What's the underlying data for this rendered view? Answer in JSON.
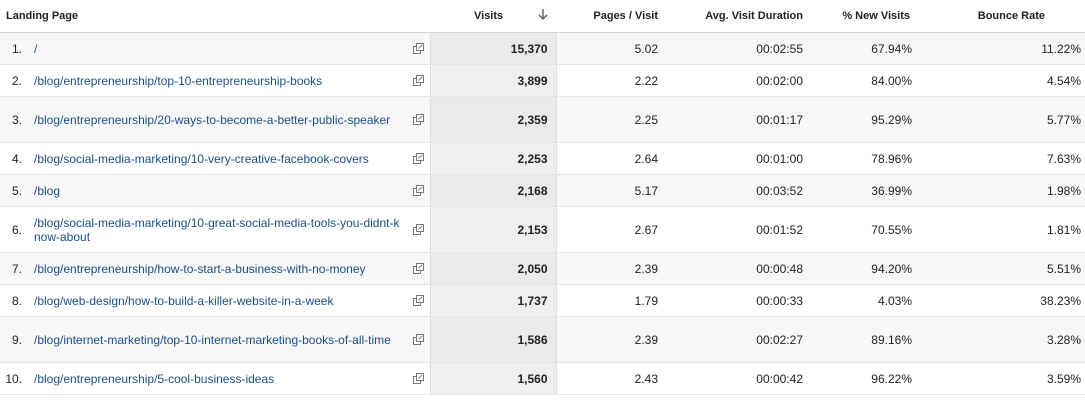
{
  "headers": {
    "landing_page": "Landing Page",
    "visits": "Visits",
    "pages_per_visit": "Pages / Visit",
    "avg_visit_duration": "Avg. Visit Duration",
    "new_visits": "% New Visits",
    "bounce_rate": "Bounce Rate"
  },
  "rows": [
    {
      "idx": "1.",
      "page": "/",
      "visits": "15,370",
      "pages": "5.02",
      "duration": "00:02:55",
      "new": "67.94%",
      "bounce": "11.22%"
    },
    {
      "idx": "2.",
      "page": "/blog/entrepreneurship/top-10-entrepreneurship-books",
      "visits": "3,899",
      "pages": "2.22",
      "duration": "00:02:00",
      "new": "84.00%",
      "bounce": "4.54%"
    },
    {
      "idx": "3.",
      "page": "/blog/entrepreneurship/20-ways-to-become-a-better-public-speaker",
      "visits": "2,359",
      "pages": "2.25",
      "duration": "00:01:17",
      "new": "95.29%",
      "bounce": "5.77%"
    },
    {
      "idx": "4.",
      "page": "/blog/social-media-marketing/10-very-creative-facebook-covers",
      "visits": "2,253",
      "pages": "2.64",
      "duration": "00:01:00",
      "new": "78.96%",
      "bounce": "7.63%"
    },
    {
      "idx": "5.",
      "page": "/blog",
      "visits": "2,168",
      "pages": "5.17",
      "duration": "00:03:52",
      "new": "36.99%",
      "bounce": "1.98%"
    },
    {
      "idx": "6.",
      "page": "/blog/social-media-marketing/10-great-social-media-tools-you-didnt-know-about",
      "visits": "2,153",
      "pages": "2.67",
      "duration": "00:01:52",
      "new": "70.55%",
      "bounce": "1.81%"
    },
    {
      "idx": "7.",
      "page": "/blog/entrepreneurship/how-to-start-a-business-with-no-money",
      "visits": "2,050",
      "pages": "2.39",
      "duration": "00:00:48",
      "new": "94.20%",
      "bounce": "5.51%"
    },
    {
      "idx": "8.",
      "page": "/blog/web-design/how-to-build-a-killer-website-in-a-week",
      "visits": "1,737",
      "pages": "1.79",
      "duration": "00:00:33",
      "new": "4.03%",
      "bounce": "38.23%"
    },
    {
      "idx": "9.",
      "page": "/blog/internet-marketing/top-10-internet-marketing-books-of-all-time",
      "visits": "1,586",
      "pages": "2.39",
      "duration": "00:02:27",
      "new": "89.16%",
      "bounce": "3.28%"
    },
    {
      "idx": "10.",
      "page": "/blog/entrepreneurship/5-cool-business-ideas",
      "visits": "1,560",
      "pages": "2.43",
      "duration": "00:00:42",
      "new": "96.22%",
      "bounce": "3.59%"
    }
  ],
  "icons": {
    "sort": "arrow-down-icon",
    "external": "external-link-icon"
  }
}
